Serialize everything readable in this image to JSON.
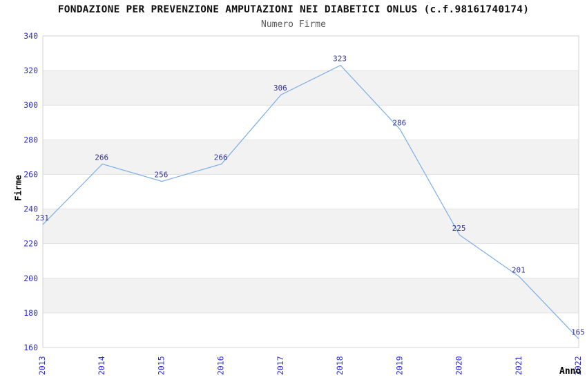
{
  "page": {
    "background": "#ffffff"
  },
  "chart_data": {
    "type": "line",
    "title": "FONDAZIONE PER PREVENZIONE AMPUTAZIONI NEI DIABETICI ONLUS (c.f.98161740174)",
    "subtitle": "Numero Firme",
    "xlabel": "Anno",
    "ylabel": "Firme",
    "categories": [
      "2013",
      "2014",
      "2015",
      "2016",
      "2017",
      "2018",
      "2019",
      "2020",
      "2021",
      "2022"
    ],
    "values": [
      231,
      266,
      256,
      266,
      306,
      323,
      286,
      225,
      201,
      165
    ],
    "ylim": [
      160,
      340
    ],
    "ytick_step": 20,
    "yticks": [
      340,
      320,
      300,
      280,
      260,
      240,
      220,
      200,
      180,
      160
    ],
    "grid": "horizontal-only",
    "legend": "none",
    "point_labels_visible": true,
    "banded_background": true,
    "colors": {
      "line": "#7fb1e8",
      "tick_labels": "#2d2dcf",
      "point_labels": "#333399",
      "band_fill": "#f2f2f2",
      "gridline": "#e2e2e2",
      "plot_border": "#d3d3d3",
      "title_text": "#111111",
      "subtitle_text": "#5a5a5a",
      "axis_label_text": "#000000"
    }
  }
}
